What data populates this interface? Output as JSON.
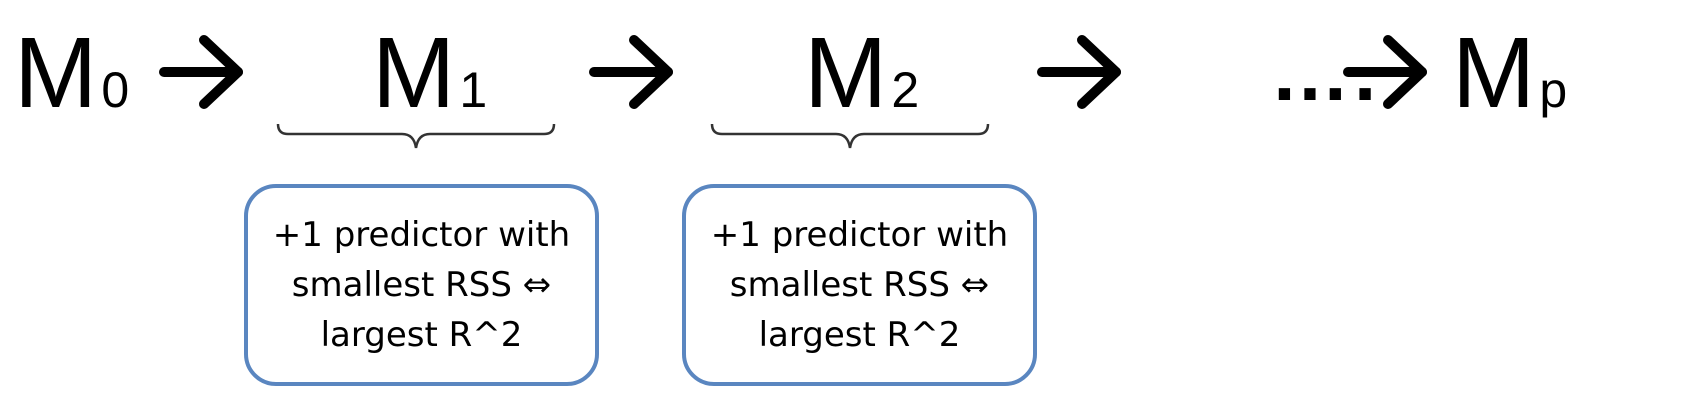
{
  "models": [
    {
      "base": "M",
      "sub": "0"
    },
    {
      "base": "M",
      "sub": "1"
    },
    {
      "base": "M",
      "sub": "2"
    },
    {
      "base": "M",
      "sub": "p"
    }
  ],
  "ellipsis": "….",
  "steps": [
    {
      "lines": [
        "+1 predictor with",
        "smallest RSS ⇔",
        "largest R^2"
      ]
    },
    {
      "lines": [
        "+1 predictor with",
        "smallest RSS ⇔",
        "largest R^2"
      ]
    }
  ],
  "colors": {
    "text": "#000000",
    "box_border": "#5a86c0",
    "brace": "#333333"
  }
}
